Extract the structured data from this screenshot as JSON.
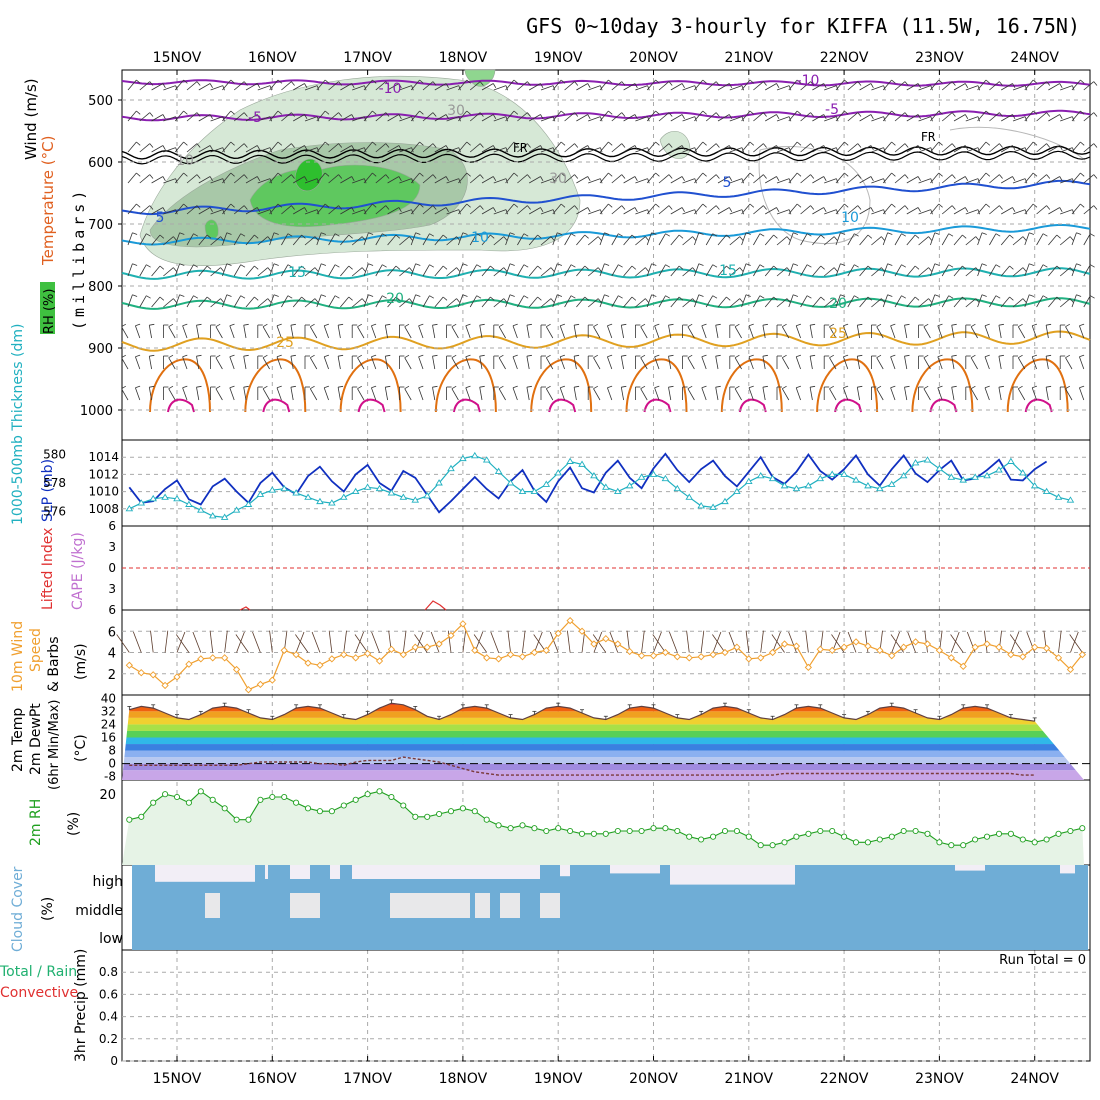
{
  "title": "GFS 0~10day 3-hourly for KIFFA (11.5W, 16.75N)",
  "date_labels": [
    "15NOV",
    "16NOV",
    "17NOV",
    "18NOV",
    "19NOV",
    "20NOV",
    "21NOV",
    "22NOV",
    "23NOV",
    "24NOV"
  ],
  "run_total": "Run Total = 0",
  "colors": {
    "temp_purple": "#8a1fb0",
    "temp_blue": "#2050d0",
    "temp_lightblue": "#1a9ad8",
    "temp_teal": "#1fb0b0",
    "temp_green": "#20b080",
    "temp_orange": "#e0a020",
    "temp_darkorange": "#e07010",
    "temp_magenta": "#d0108a",
    "slp": "#1030c0",
    "thickness": "#20b0c0",
    "wind_speed": "#f0a030",
    "rh2m": "#20a020",
    "cloud": "#6fadd6",
    "lifted_zero": "#e03030"
  },
  "panels": {
    "upper": {
      "ylabel_wind": "Wind (m/s)",
      "ylabel_temp": "Temperature (°C)",
      "ylabel_rh": "RH (%)",
      "ylabel_unit": "(millibars)",
      "ticks": [
        "500",
        "600",
        "700",
        "800",
        "900",
        "1000"
      ],
      "fr_label": "FR",
      "contour_labels": [
        "-10",
        "-5",
        "5",
        "10",
        "15",
        "20",
        "25",
        "-10",
        "-5",
        "5",
        "10",
        "15",
        "20",
        "25",
        "30",
        "10",
        "30"
      ]
    },
    "slp": {
      "ylabel_thick": "1000-500mb Thickness (dm)",
      "ylabel_slp": "SLP (mb)",
      "ticks_left": [
        "580",
        "578",
        "576"
      ],
      "ticks_right": [
        "1014",
        "1012",
        "1010",
        "1008"
      ]
    },
    "cape": {
      "ylabel_li": "Lifted Index",
      "ylabel_cape": "CAPE (J/kg)",
      "ticks": [
        "6",
        "3",
        "0",
        "3",
        "6"
      ]
    },
    "wind": {
      "ylabel1": "10m Wind",
      "ylabel2": "Speed",
      "ylabel3": "& Barbs",
      "ylabel_unit": "(m/s)",
      "ticks": [
        "6",
        "4",
        "2"
      ]
    },
    "temp": {
      "ylabel1": "2m Temp",
      "ylabel2": "2m DewPt",
      "ylabel3": "(6hr Min/Max)",
      "ylabel_unit": "(°C)",
      "ticks": [
        "40",
        "32",
        "24",
        "16",
        "8",
        "0",
        "-8"
      ]
    },
    "rh": {
      "ylabel": "2m RH",
      "ylabel_unit": "(%)",
      "ticks": [
        "20"
      ]
    },
    "cloud": {
      "ylabel": "Cloud Cover",
      "ylabel_unit": "(%)",
      "layers": [
        "high",
        "middle",
        "low"
      ]
    },
    "precip": {
      "ylabel_total": "Total / Rain",
      "ylabel_conv": "Convective",
      "ylabel_unit": "3hr Precip (mm)",
      "ticks": [
        "0.8",
        "0.6",
        "0.4",
        "0.2",
        "0"
      ]
    }
  },
  "chart_data": [
    {
      "type": "line",
      "title": "SLP (mb)",
      "x_start": "14NOV 12Z",
      "x_step_hours": 3,
      "series": [
        {
          "name": "SLP (mb)",
          "values": [
            1010.5,
            1008.7,
            1008.9,
            1010.3,
            1011.3,
            1009.1,
            1008.5,
            1010.6,
            1011.5,
            1010.0,
            1008.7,
            1011.0,
            1012.2,
            1010.5,
            1009.7,
            1011.8,
            1012.9,
            1011.2,
            1010.0,
            1012.0,
            1013.1,
            1011.0,
            1010.1,
            1012.4,
            1011.6,
            1009.6,
            1007.6,
            1008.9,
            1010.3,
            1011.7,
            1010.3,
            1009.2,
            1011.2,
            1012.5,
            1010.1,
            1008.8,
            1011.2,
            1012.8,
            1010.4,
            1009.9,
            1012.2,
            1013.6,
            1011.6,
            1010.4,
            1012.7,
            1014.4,
            1012.5,
            1011.1,
            1012.6,
            1013.6,
            1011.8,
            1010.6,
            1012.3,
            1014.0,
            1011.7,
            1010.9,
            1012.3,
            1014.3,
            1012.4,
            1011.4,
            1012.6,
            1014.2,
            1012.0,
            1010.7,
            1012.6,
            1014.2,
            1012.1,
            1011.1,
            1012.5,
            1013.6,
            1011.3,
            1011.5,
            1012.5,
            1013.7,
            1011.4,
            1011.3,
            1012.6,
            1013.5
          ]
        }
      ],
      "ylim": [
        1006,
        1016
      ]
    },
    {
      "type": "line",
      "title": "1000-500mb Thickness (dm)",
      "x_start": "14NOV 12Z",
      "x_step_hours": 3,
      "series": [
        {
          "name": "1000-500mb Thickness (dm)",
          "values": [
            576.2,
            576.6,
            576.9,
            577.0,
            576.9,
            576.5,
            576.1,
            575.7,
            575.6,
            576.1,
            576.5,
            577.2,
            577.5,
            577.6,
            577.3,
            577.0,
            576.7,
            576.6,
            577.0,
            577.4,
            577.7,
            577.6,
            577.3,
            577.0,
            576.8,
            577.1,
            578.0,
            579.0,
            579.7,
            579.9,
            579.6,
            578.8,
            578.0,
            577.4,
            577.4,
            577.9,
            578.7,
            579.5,
            579.3,
            578.5,
            577.7,
            577.4,
            577.8,
            578.4,
            578.6,
            578.3,
            577.6,
            577.0,
            576.4,
            576.3,
            576.7,
            577.4,
            578.1,
            578.5,
            578.3,
            577.8,
            577.6,
            577.8,
            578.3,
            578.6,
            578.6,
            578.2,
            577.8,
            577.6,
            577.9,
            578.5,
            579.4,
            579.6,
            579.0,
            578.4,
            578.2,
            578.4,
            578.5,
            578.9,
            579.5,
            578.7,
            577.8,
            577.4,
            577.0,
            576.8
          ]
        }
      ],
      "ylim": [
        575,
        581
      ]
    },
    {
      "type": "line",
      "title": "10m Wind Speed (m/s)",
      "x_start": "14NOV 12Z",
      "x_step_hours": 3,
      "series": [
        {
          "name": "10m Wind Speed (m/s)",
          "values": [
            2.8,
            2.1,
            1.9,
            0.9,
            1.7,
            2.9,
            3.4,
            3.5,
            3.5,
            2.4,
            0.5,
            1.0,
            1.4,
            4.2,
            3.8,
            3.0,
            2.8,
            3.4,
            3.8,
            3.5,
            3.9,
            3.2,
            4.3,
            3.8,
            4.5,
            4.5,
            4.8,
            5.6,
            6.7,
            4.2,
            3.5,
            3.4,
            3.8,
            3.6,
            4.0,
            4.2,
            5.8,
            7.0,
            6.0,
            4.8,
            5.3,
            4.8,
            4.1,
            3.7,
            3.7,
            4.0,
            3.6,
            3.5,
            3.6,
            3.8,
            4.0,
            4.5,
            3.4,
            3.5,
            4.0,
            4.8,
            4.6,
            2.6,
            4.3,
            4.2,
            4.5,
            5.0,
            4.6,
            4.2,
            3.7,
            4.5,
            5.0,
            4.8,
            4.2,
            3.5,
            2.7,
            4.5,
            4.8,
            4.5,
            3.8,
            3.6,
            4.5,
            4.4,
            3.5,
            2.4,
            3.8,
            4.5,
            4.6,
            4.2
          ]
        }
      ],
      "ylim": [
        0,
        8
      ]
    },
    {
      "type": "area",
      "title": "2m Temp (°C)",
      "x_start": "14NOV 12Z",
      "x_step_hours": 3,
      "series": [
        {
          "name": "2m Temp (°C)",
          "values": [
            33,
            35,
            34,
            31,
            28,
            27,
            30,
            34,
            35,
            34,
            31,
            28,
            27,
            30,
            34,
            35,
            34,
            31,
            28,
            27,
            30,
            34,
            37,
            36,
            33,
            29,
            27,
            30,
            34,
            35,
            34,
            31,
            28,
            27,
            30,
            34,
            35,
            34,
            31,
            28,
            27,
            30,
            34,
            35,
            34,
            31,
            28,
            27,
            30,
            34,
            35,
            34,
            31,
            28,
            27,
            30,
            34,
            35,
            34,
            31,
            28,
            27,
            30,
            34,
            35,
            34,
            31,
            28,
            27,
            30,
            34,
            35,
            34,
            31,
            28,
            27,
            26
          ]
        },
        {
          "name": "2m DewPt (°C)",
          "values": [
            -1,
            -1,
            -1,
            -1,
            -1,
            -1,
            -1,
            -1,
            -1,
            -1,
            0,
            1,
            1,
            1,
            1,
            1,
            0,
            0,
            -1,
            1,
            2,
            2,
            2,
            4,
            3,
            2,
            1,
            -1,
            -3,
            -5,
            -6,
            -7,
            -7,
            -7,
            -7,
            -7,
            -7,
            -7,
            -7,
            -7,
            -7,
            -7,
            -7,
            -7,
            -7,
            -7,
            -7,
            -7,
            -7,
            -7,
            -7,
            -7,
            -7,
            -7,
            -7,
            -6,
            -6,
            -6,
            -6,
            -6,
            -6,
            -6,
            -6,
            -6,
            -6,
            -6,
            -6,
            -6,
            -6,
            -6,
            -6,
            -6,
            -6,
            -6,
            -6,
            -7,
            -7
          ]
        }
      ],
      "ylim": [
        -10,
        42
      ]
    },
    {
      "type": "line",
      "title": "2m RH (%)",
      "x_start": "14NOV 12Z",
      "x_step_hours": 3,
      "series": [
        {
          "name": "2m RH (%)",
          "values": [
            11,
            12,
            17,
            20,
            19,
            17,
            21,
            18,
            15,
            11,
            11,
            18,
            19,
            19,
            17,
            15,
            14,
            14,
            16,
            18,
            20,
            21,
            19,
            16,
            12,
            12,
            13,
            14,
            15,
            14,
            11,
            9,
            8,
            9,
            8,
            7,
            8,
            7,
            6,
            6,
            6,
            7,
            7,
            7,
            8,
            8,
            7,
            5,
            4,
            5,
            7,
            7,
            5,
            2,
            2,
            3,
            5,
            6,
            7,
            7,
            5,
            3,
            3,
            4,
            5,
            7,
            7,
            6,
            3,
            2,
            2,
            4,
            5,
            6,
            6,
            4,
            3,
            4,
            6,
            7,
            8,
            7,
            4,
            3,
            2
          ]
        }
      ],
      "ylim": [
        -5,
        25
      ]
    },
    {
      "type": "bar",
      "title": "3hr Precip (mm)",
      "values": [],
      "ylim": [
        0,
        1
      ]
    }
  ]
}
